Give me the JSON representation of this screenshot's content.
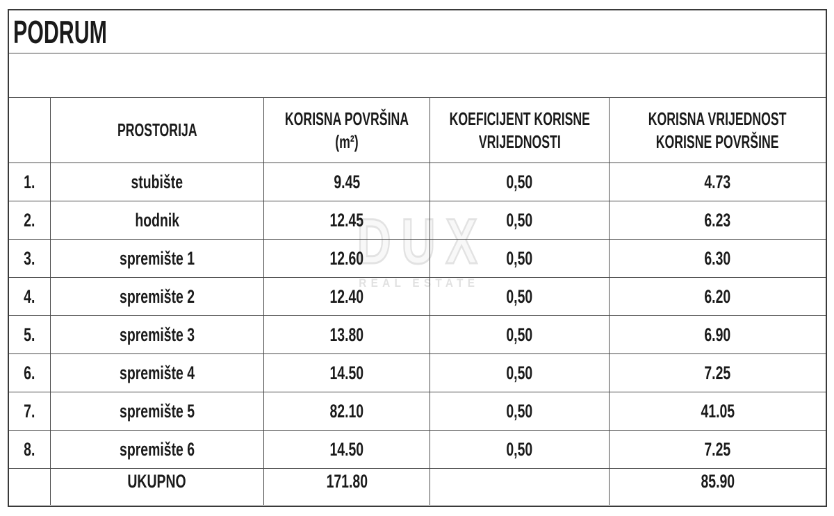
{
  "page": {
    "title": "PODRUM"
  },
  "table": {
    "headers": {
      "num": "",
      "room": "PROSTORIJA",
      "area_line1": "KORISNA POVRŠINA",
      "area_line2": "(m²)",
      "coef_line1": "KOEFICIJENT KORISNE",
      "coef_line2": "VRIJEDNOSTI",
      "value_line1": "KORISNA VRIJEDNOST",
      "value_line2": "KORISNE POVRŠINE"
    },
    "rows": [
      {
        "num": "1.",
        "room": "stubište",
        "area": "9.45",
        "coef": "0,50",
        "value": "4.73"
      },
      {
        "num": "2.",
        "room": "hodnik",
        "area": "12.45",
        "coef": "0,50",
        "value": "6.23"
      },
      {
        "num": "3.",
        "room": "spremište 1",
        "area": "12.60",
        "coef": "0,50",
        "value": "6.30"
      },
      {
        "num": "4.",
        "room": "spremište 2",
        "area": "12.40",
        "coef": "0,50",
        "value": "6.20"
      },
      {
        "num": "5.",
        "room": "spremište 3",
        "area": "13.80",
        "coef": "0,50",
        "value": "6.90"
      },
      {
        "num": "6.",
        "room": "spremište 4",
        "area": "14.50",
        "coef": "0,50",
        "value": "7.25"
      },
      {
        "num": "7.",
        "room": "spremište 5",
        "area": "82.10",
        "coef": "0,50",
        "value": "41.05"
      },
      {
        "num": "8.",
        "room": "spremište 6",
        "area": "14.50",
        "coef": "0,50",
        "value": "7.25"
      }
    ],
    "total": {
      "num": "",
      "label": "UKUPNO",
      "area": "171.80",
      "coef": "",
      "value": "85.90"
    }
  },
  "watermark": {
    "line1": "DUX",
    "line2": "REAL ESTATE"
  },
  "colors": {
    "border": "#4a4a4a",
    "text": "#1a1a1a",
    "watermark": "#e0e0e0"
  }
}
